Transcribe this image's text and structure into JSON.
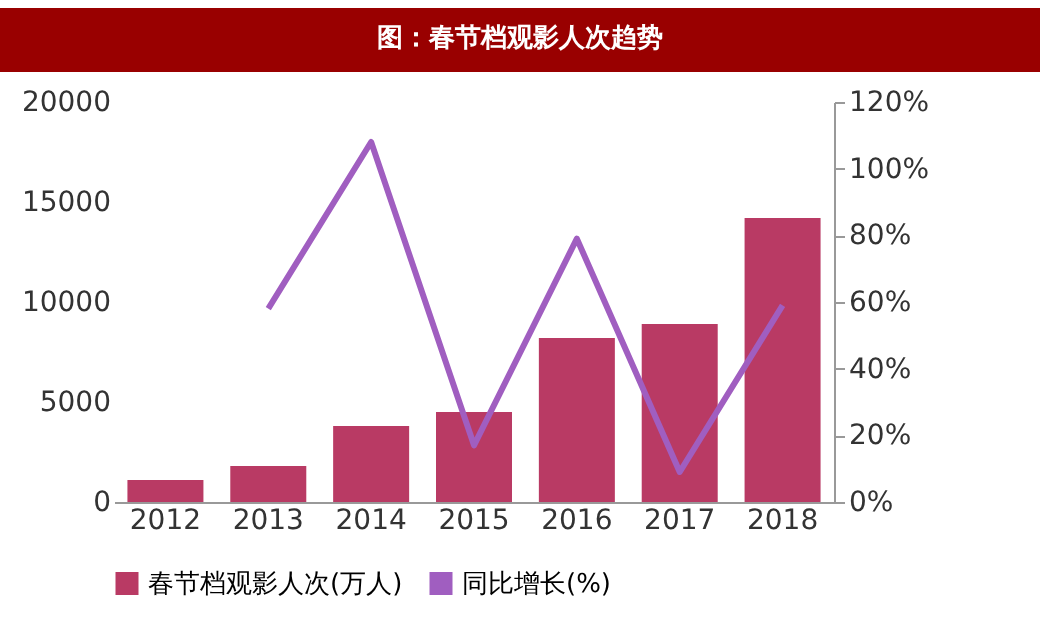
{
  "chart_data": {
    "type": "bar",
    "title": "图：春节档观影人次趋势",
    "categories": [
      "2012",
      "2013",
      "2014",
      "2015",
      "2016",
      "2017",
      "2018"
    ],
    "series": [
      {
        "name": "春节档观影人次(万人)",
        "color": "#b93a64",
        "values": [
          1100,
          1800,
          3800,
          4500,
          8200,
          8900,
          14200
        ]
      },
      {
        "name": "同比增长(%)",
        "type": "line",
        "axis": "y2",
        "color": "#a05ec0",
        "values": [
          null,
          58,
          108,
          17,
          79,
          9,
          59
        ]
      }
    ],
    "ylim": [
      0,
      20000
    ],
    "yticks": [
      0,
      5000,
      10000,
      15000,
      20000
    ],
    "y2lim": [
      0,
      120
    ],
    "y2ticks": [
      {
        "value": 0,
        "label": "0%"
      },
      {
        "value": 20,
        "label": "20%"
      },
      {
        "value": 40,
        "label": "40%"
      },
      {
        "value": 60,
        "label": "60%"
      },
      {
        "value": 80,
        "label": "80%"
      },
      {
        "value": 100,
        "label": "100%"
      },
      {
        "value": 120,
        "label": "120%"
      }
    ],
    "grid": false,
    "legend": "bottom",
    "marker": "none"
  }
}
